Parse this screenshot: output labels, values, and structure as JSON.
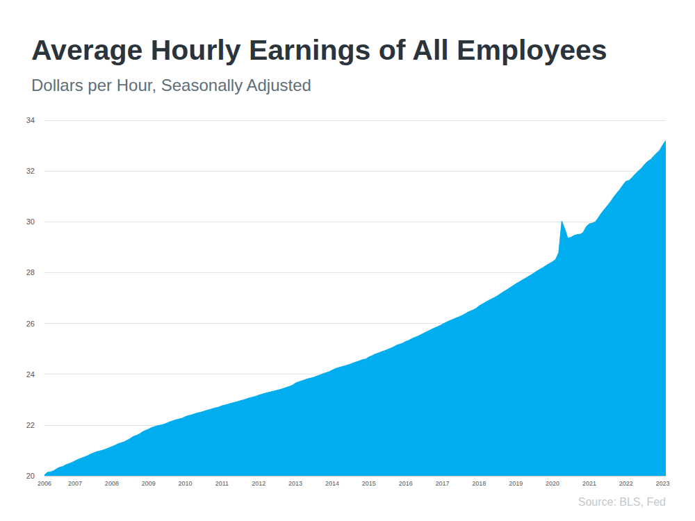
{
  "chart_data": {
    "type": "area",
    "title": "Average Hourly Earnings of All Employees",
    "subtitle": "Dollars per Hour, Seasonally Adjusted",
    "source": "Source: BLS, Fed",
    "color": "#00aeef",
    "grid": true,
    "ylim": [
      20,
      34
    ],
    "yticks": [
      20,
      22,
      24,
      26,
      28,
      30,
      32,
      34
    ],
    "categories": [
      "2006",
      null,
      null,
      null,
      null,
      null,
      null,
      null,
      null,
      null,
      "2007",
      null,
      null,
      null,
      null,
      null,
      null,
      null,
      null,
      null,
      null,
      null,
      "2008",
      null,
      null,
      null,
      null,
      null,
      null,
      null,
      null,
      null,
      null,
      null,
      "2009",
      null,
      null,
      null,
      null,
      null,
      null,
      null,
      null,
      null,
      null,
      null,
      "2010",
      null,
      null,
      null,
      null,
      null,
      null,
      null,
      null,
      null,
      null,
      null,
      "2011",
      null,
      null,
      null,
      null,
      null,
      null,
      null,
      null,
      null,
      null,
      null,
      "2012",
      null,
      null,
      null,
      null,
      null,
      null,
      null,
      null,
      null,
      null,
      null,
      "2013",
      null,
      null,
      null,
      null,
      null,
      null,
      null,
      null,
      null,
      null,
      null,
      "2014",
      null,
      null,
      null,
      null,
      null,
      null,
      null,
      null,
      null,
      null,
      null,
      "2015",
      null,
      null,
      null,
      null,
      null,
      null,
      null,
      null,
      null,
      null,
      null,
      "2016",
      null,
      null,
      null,
      null,
      null,
      null,
      null,
      null,
      null,
      null,
      null,
      "2017",
      null,
      null,
      null,
      null,
      null,
      null,
      null,
      null,
      null,
      null,
      null,
      "2018",
      null,
      null,
      null,
      null,
      null,
      null,
      null,
      null,
      null,
      null,
      null,
      "2019",
      null,
      null,
      null,
      null,
      null,
      null,
      null,
      null,
      null,
      null,
      null,
      "2020",
      null,
      null,
      null,
      null,
      null,
      null,
      null,
      null,
      null,
      null,
      null,
      "2021",
      null,
      null,
      null,
      null,
      null,
      null,
      null,
      null,
      null,
      null,
      null,
      "2022",
      null,
      null,
      null,
      null,
      null,
      null,
      null,
      null,
      null,
      null,
      null,
      "2023",
      null
    ],
    "values": [
      20.04,
      20.14,
      20.16,
      20.2,
      20.28,
      20.34,
      20.37,
      20.44,
      20.48,
      20.53,
      20.59,
      20.65,
      20.7,
      20.74,
      20.79,
      20.85,
      20.9,
      20.95,
      20.98,
      21.01,
      21.05,
      21.1,
      21.15,
      21.2,
      21.26,
      21.3,
      21.34,
      21.4,
      21.47,
      21.55,
      21.59,
      21.65,
      21.73,
      21.79,
      21.84,
      21.9,
      21.94,
      21.98,
      22.0,
      22.03,
      22.08,
      22.13,
      22.17,
      22.21,
      22.24,
      22.27,
      22.33,
      22.37,
      22.4,
      22.44,
      22.48,
      22.5,
      22.54,
      22.58,
      22.61,
      22.65,
      22.68,
      22.71,
      22.76,
      22.79,
      22.82,
      22.86,
      22.89,
      22.92,
      22.96,
      22.99,
      23.03,
      23.07,
      23.1,
      23.13,
      23.18,
      23.21,
      23.25,
      23.28,
      23.31,
      23.34,
      23.37,
      23.4,
      23.44,
      23.48,
      23.52,
      23.57,
      23.65,
      23.7,
      23.74,
      23.78,
      23.82,
      23.85,
      23.88,
      23.93,
      23.97,
      24.02,
      24.06,
      24.1,
      24.16,
      24.22,
      24.26,
      24.29,
      24.33,
      24.36,
      24.4,
      24.45,
      24.49,
      24.53,
      24.58,
      24.6,
      24.68,
      24.73,
      24.79,
      24.83,
      24.88,
      24.92,
      24.97,
      25.02,
      25.07,
      25.14,
      25.18,
      25.22,
      25.29,
      25.33,
      25.4,
      25.45,
      25.5,
      25.56,
      25.62,
      25.68,
      25.74,
      25.8,
      25.85,
      25.9,
      25.97,
      26.03,
      26.09,
      26.14,
      26.19,
      26.24,
      26.29,
      26.35,
      26.42,
      26.48,
      26.53,
      26.59,
      26.69,
      26.76,
      26.83,
      26.9,
      26.96,
      27.02,
      27.09,
      27.17,
      27.25,
      27.32,
      27.4,
      27.48,
      27.56,
      27.63,
      27.7,
      27.77,
      27.84,
      27.91,
      27.99,
      28.07,
      28.14,
      28.21,
      28.29,
      28.36,
      28.43,
      28.52,
      28.79,
      30.03,
      29.72,
      29.35,
      29.39,
      29.46,
      29.5,
      29.51,
      29.58,
      29.81,
      29.92,
      29.95,
      30.0,
      30.17,
      30.35,
      30.5,
      30.65,
      30.8,
      30.98,
      31.13,
      31.28,
      31.45,
      31.6,
      31.63,
      31.75,
      31.88,
      32.0,
      32.1,
      32.25,
      32.37,
      32.45,
      32.58,
      32.7,
      32.82,
      33.03,
      33.2
    ]
  }
}
